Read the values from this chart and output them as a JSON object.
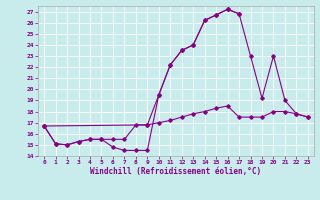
{
  "xlabel": "Windchill (Refroidissement éolien,°C)",
  "bg_color": "#c8ecec",
  "line_color": "#880088",
  "grid_color": "#b0d8d8",
  "xlim": [
    -0.5,
    23.5
  ],
  "ylim": [
    14,
    27.5
  ],
  "xticks": [
    0,
    1,
    2,
    3,
    4,
    5,
    6,
    7,
    8,
    9,
    10,
    11,
    12,
    13,
    14,
    15,
    16,
    17,
    18,
    19,
    20,
    21,
    22,
    23
  ],
  "yticks": [
    14,
    15,
    16,
    17,
    18,
    19,
    20,
    21,
    22,
    23,
    24,
    25,
    26,
    27
  ],
  "line1_x": [
    0,
    1,
    2,
    3,
    4,
    5,
    6,
    7,
    8,
    9,
    10,
    11,
    12,
    13,
    14,
    15,
    16,
    17
  ],
  "line1_y": [
    16.7,
    15.1,
    15.0,
    15.3,
    15.5,
    15.5,
    14.8,
    14.5,
    14.5,
    14.5,
    19.5,
    22.2,
    23.5,
    24.0,
    26.2,
    26.7,
    27.2,
    26.8
  ],
  "line2_x": [
    0,
    1,
    2,
    3,
    4,
    5,
    6,
    7,
    8,
    9,
    10,
    11,
    12,
    13,
    14,
    15,
    16,
    17,
    18,
    19,
    20,
    21,
    22,
    23
  ],
  "line2_y": [
    16.7,
    15.1,
    15.0,
    15.3,
    15.5,
    15.5,
    15.5,
    15.5,
    16.8,
    16.8,
    17.0,
    17.2,
    17.5,
    17.8,
    18.0,
    18.3,
    18.5,
    17.5,
    17.5,
    17.5,
    18.0,
    18.0,
    17.8,
    17.5
  ],
  "line3_x": [
    0,
    9,
    10,
    11,
    12,
    13,
    14,
    15,
    16,
    17,
    18,
    19,
    20,
    21,
    22,
    23
  ],
  "line3_y": [
    16.7,
    16.8,
    19.5,
    22.2,
    23.5,
    24.0,
    26.2,
    26.7,
    27.2,
    26.8,
    23.0,
    19.2,
    23.0,
    19.0,
    17.8,
    17.5
  ]
}
